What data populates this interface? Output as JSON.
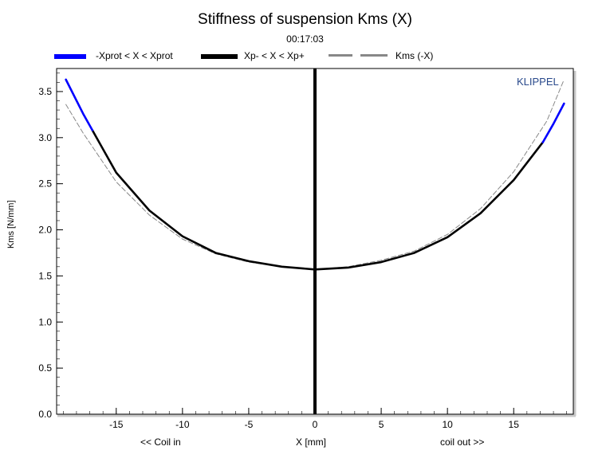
{
  "chart_data": {
    "type": "line",
    "title": "Stiffness of suspension Kms (X)",
    "subtitle": "00:17:03",
    "xlabel": "X [mm]",
    "ylabel": "Kms [N/mm]",
    "xlim": [
      -19.5,
      19.5
    ],
    "ylim": [
      0.0,
      3.75
    ],
    "x_ticks": [
      -15,
      -10,
      -5,
      0,
      5,
      10,
      15
    ],
    "y_ticks": [
      0.0,
      0.5,
      1.0,
      1.5,
      2.0,
      2.5,
      3.0,
      3.5
    ],
    "x_tick_labels": [
      "-15",
      "-10",
      "-5",
      "0",
      "5",
      "10",
      "15"
    ],
    "y_tick_labels": [
      "0.0",
      "0.5",
      "1.0",
      "1.5",
      "2.0",
      "2.5",
      "3.0",
      "3.5"
    ],
    "grid": false,
    "legend_position": "top",
    "series": [
      {
        "name": "-Xprot < X < Xprot",
        "color": "#0000ff",
        "style": "solid",
        "x": [
          -18.8,
          -17.5,
          -16.8
        ],
        "y": [
          3.63,
          3.26,
          3.08
        ]
      },
      {
        "name": "Xp- < X < Xp+",
        "color": "#000000",
        "style": "solid",
        "x": [
          -16.8,
          -15,
          -12.5,
          -10,
          -7.5,
          -5,
          -2.5,
          0,
          2.5,
          5,
          7.5,
          10,
          12.5,
          15,
          17.2
        ],
        "y": [
          3.08,
          2.62,
          2.21,
          1.93,
          1.75,
          1.66,
          1.6,
          1.57,
          1.59,
          1.65,
          1.75,
          1.92,
          2.18,
          2.54,
          2.95
        ]
      },
      {
        "name": "-Xprot < X < Xprot",
        "color": "#0000ff",
        "style": "solid",
        "x": [
          17.2,
          18.0,
          18.8
        ],
        "y": [
          2.95,
          3.15,
          3.37
        ]
      },
      {
        "name": "Kms (-X)",
        "color": "#888888",
        "style": "dashed",
        "x": [
          -18.8,
          -17.5,
          -15,
          -12.5,
          -10,
          -7.5,
          -5,
          -2.5,
          0,
          2.5,
          5,
          7.5,
          10,
          12.5,
          15,
          17.5,
          18.8
        ],
        "y": [
          3.36,
          3.05,
          2.52,
          2.16,
          1.9,
          1.74,
          1.65,
          1.6,
          1.57,
          1.6,
          1.67,
          1.77,
          1.95,
          2.23,
          2.63,
          3.18,
          3.63
        ]
      }
    ],
    "annotations": [
      {
        "kind": "vertical_line",
        "x": 0,
        "color": "#000000"
      }
    ]
  },
  "legend": [
    {
      "label": "-Xprot < X < Xprot",
      "color": "#0000ff",
      "style": "solid"
    },
    {
      "label": "Xp- < X < Xp+",
      "color": "#000000",
      "style": "solid"
    },
    {
      "label": "Kms (-X)",
      "color": "#888888",
      "style": "dashed"
    }
  ],
  "brand": "KLIPPEL",
  "bottom_left_label": "<< Coil in",
  "bottom_right_label": "coil out >>"
}
